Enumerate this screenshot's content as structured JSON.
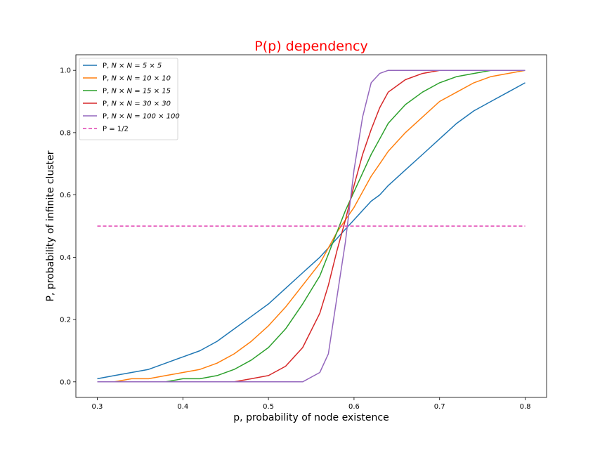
{
  "chart_data": {
    "type": "line",
    "title": "P(p) dependency",
    "title_color": "#ff0000",
    "xlabel": "p, probability of node existence",
    "ylabel": "P, probability of infinite cluster",
    "xlim": [
      0.275,
      0.825
    ],
    "ylim": [
      -0.05,
      1.05
    ],
    "x_ticks": [
      "0.3",
      "0.4",
      "0.5",
      "0.6",
      "0.7",
      "0.8"
    ],
    "y_ticks": [
      "0.0",
      "0.2",
      "0.4",
      "0.6",
      "0.8",
      "1.0"
    ],
    "grid": false,
    "legend_position": "top-left",
    "x": [
      0.3,
      0.32,
      0.34,
      0.36,
      0.38,
      0.4,
      0.42,
      0.44,
      0.46,
      0.48,
      0.5,
      0.52,
      0.54,
      0.56,
      0.57,
      0.58,
      0.59,
      0.6,
      0.61,
      0.62,
      0.63,
      0.64,
      0.66,
      0.68,
      0.7,
      0.72,
      0.74,
      0.76,
      0.78,
      0.8
    ],
    "series": [
      {
        "name_prefix": "P, ",
        "name_math": "N × N = 5 × 5",
        "color": "#1f77b4",
        "style": "solid",
        "values": [
          0.01,
          0.02,
          0.03,
          0.04,
          0.06,
          0.08,
          0.1,
          0.13,
          0.17,
          0.21,
          0.25,
          0.3,
          0.35,
          0.4,
          0.43,
          0.46,
          0.49,
          0.52,
          0.55,
          0.58,
          0.6,
          0.63,
          0.68,
          0.73,
          0.78,
          0.83,
          0.87,
          0.9,
          0.93,
          0.96
        ]
      },
      {
        "name_prefix": "P, ",
        "name_math": "N × N = 10 × 10",
        "color": "#ff7f0e",
        "style": "solid",
        "values": [
          0.0,
          0.0,
          0.01,
          0.01,
          0.02,
          0.03,
          0.04,
          0.06,
          0.09,
          0.13,
          0.18,
          0.24,
          0.31,
          0.38,
          0.43,
          0.48,
          0.52,
          0.56,
          0.61,
          0.66,
          0.7,
          0.74,
          0.8,
          0.85,
          0.9,
          0.93,
          0.96,
          0.98,
          0.99,
          1.0
        ]
      },
      {
        "name_prefix": "P, ",
        "name_math": "N × N = 15 × 15",
        "color": "#2ca02c",
        "style": "solid",
        "values": [
          0.0,
          0.0,
          0.0,
          0.0,
          0.0,
          0.01,
          0.01,
          0.02,
          0.04,
          0.07,
          0.11,
          0.17,
          0.25,
          0.34,
          0.41,
          0.48,
          0.55,
          0.61,
          0.67,
          0.73,
          0.78,
          0.83,
          0.89,
          0.93,
          0.96,
          0.98,
          0.99,
          1.0,
          1.0,
          1.0
        ]
      },
      {
        "name_prefix": "P, ",
        "name_math": "N × N = 30 × 30",
        "color": "#d62728",
        "style": "solid",
        "values": [
          0.0,
          0.0,
          0.0,
          0.0,
          0.0,
          0.0,
          0.0,
          0.0,
          0.0,
          0.01,
          0.02,
          0.05,
          0.11,
          0.22,
          0.31,
          0.42,
          0.52,
          0.63,
          0.73,
          0.81,
          0.88,
          0.93,
          0.97,
          0.99,
          1.0,
          1.0,
          1.0,
          1.0,
          1.0,
          1.0
        ]
      },
      {
        "name_prefix": "P, ",
        "name_math": "N × N = 100 × 100",
        "color": "#9467bd",
        "style": "solid",
        "values": [
          0.0,
          0.0,
          0.0,
          0.0,
          0.0,
          0.0,
          0.0,
          0.0,
          0.0,
          0.0,
          0.0,
          0.0,
          0.0,
          0.03,
          0.09,
          0.27,
          0.45,
          0.68,
          0.85,
          0.96,
          0.99,
          1.0,
          1.0,
          1.0,
          1.0,
          1.0,
          1.0,
          1.0,
          1.0,
          1.0
        ]
      },
      {
        "name_prefix": "P = ",
        "name_math": "1/2",
        "color": "#e040b0",
        "style": "dashed",
        "values": [
          0.5,
          0.5,
          0.5,
          0.5,
          0.5,
          0.5,
          0.5,
          0.5,
          0.5,
          0.5,
          0.5,
          0.5,
          0.5,
          0.5,
          0.5,
          0.5,
          0.5,
          0.5,
          0.5,
          0.5,
          0.5,
          0.5,
          0.5,
          0.5,
          0.5,
          0.5,
          0.5,
          0.5,
          0.5,
          0.5
        ]
      }
    ]
  }
}
